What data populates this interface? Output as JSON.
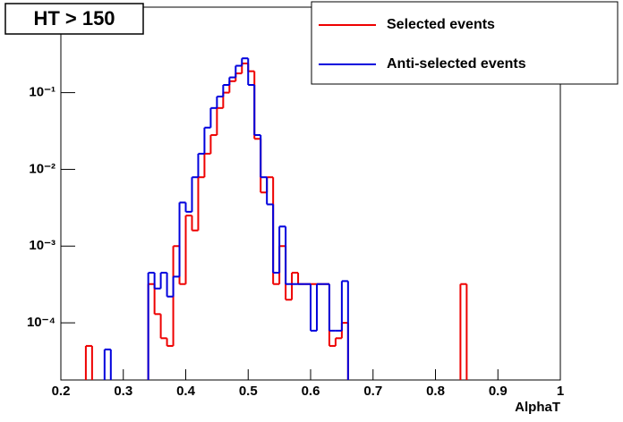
{
  "chart_data": {
    "type": "histogram",
    "title": "HT > 150",
    "x_label": "AlphaT",
    "log_y": true,
    "legend": "top-right",
    "bins": [
      0.2,
      0.21,
      0.22,
      0.23,
      0.24,
      0.25,
      0.26,
      0.27,
      0.28,
      0.29,
      0.3,
      0.31,
      0.32,
      0.33,
      0.34,
      0.35,
      0.36,
      0.37,
      0.38,
      0.39,
      0.4,
      0.41,
      0.42,
      0.43,
      0.44,
      0.45,
      0.46,
      0.47,
      0.48,
      0.49,
      0.5,
      0.51,
      0.52,
      0.53,
      0.54,
      0.55,
      0.56,
      0.57,
      0.58,
      0.59,
      0.6,
      0.61,
      0.62,
      0.63,
      0.64,
      0.65,
      0.66,
      0.67,
      0.68,
      0.69,
      0.7,
      0.71,
      0.72,
      0.73,
      0.74,
      0.75,
      0.76,
      0.77,
      0.78,
      0.79,
      0.8,
      0.81,
      0.82,
      0.83,
      0.84,
      0.85,
      0.86,
      0.87,
      0.88,
      0.89,
      0.9,
      0.91,
      0.92,
      0.93,
      0.94,
      0.95,
      0.96,
      0.97,
      0.98,
      0.99,
      1
    ],
    "series": [
      {
        "name": "Selected events",
        "color": "#ee0000",
        "values": [
          null,
          null,
          null,
          null,
          5e-05,
          null,
          null,
          null,
          null,
          null,
          null,
          null,
          null,
          null,
          0.00032,
          0.00013,
          6.3e-05,
          5e-05,
          0.001,
          0.00032,
          0.0025,
          0.0016,
          0.0079,
          0.016,
          0.028,
          0.063,
          0.1,
          0.141,
          0.178,
          0.24,
          0.19,
          0.025,
          0.005,
          0.0079,
          0.00032,
          0.001,
          0.0002,
          0.00045,
          0.00032,
          0.00032,
          0.00032,
          0.00032,
          0.00032,
          5e-05,
          6.3e-05,
          0.0001,
          null,
          null,
          null,
          null,
          null,
          null,
          null,
          null,
          null,
          null,
          null,
          null,
          null,
          null,
          null,
          null,
          null,
          null,
          0.00032,
          null,
          null,
          null,
          null,
          null,
          null,
          null,
          null,
          null,
          null,
          null,
          null,
          null,
          null,
          null
        ]
      },
      {
        "name": "Anti-selected events",
        "color": "#0000dd",
        "values": [
          null,
          null,
          null,
          null,
          null,
          null,
          null,
          4.5e-05,
          null,
          null,
          null,
          null,
          null,
          null,
          0.00045,
          0.00028,
          0.00045,
          0.00022,
          0.0004,
          0.0037,
          0.0028,
          0.0079,
          0.016,
          0.035,
          0.063,
          0.089,
          0.126,
          0.158,
          0.224,
          0.28,
          0.126,
          0.028,
          0.0079,
          0.0035,
          0.00045,
          0.0018,
          0.00032,
          0.00032,
          0.00032,
          0.00032,
          7.9e-05,
          0.00032,
          0.00032,
          7.9e-05,
          7.9e-05,
          0.00035,
          null,
          null,
          null,
          null,
          null,
          null,
          null,
          null,
          null,
          null,
          null,
          null,
          null,
          null,
          null,
          null,
          null,
          null,
          null,
          null,
          null,
          null,
          null,
          null,
          null,
          null,
          null,
          null,
          null,
          null,
          null,
          null,
          null,
          null
        ]
      }
    ],
    "xlim": [
      0.2,
      1
    ],
    "xticks": [
      0.2,
      0.3,
      0.4,
      0.5,
      0.6,
      0.7,
      0.8,
      0.9,
      1
    ],
    "ylim": [
      1.8e-05,
      1.3
    ],
    "yticks": [
      {
        "value": 0.0001,
        "label": "10⁻⁴"
      },
      {
        "value": 0.001,
        "label": "10⁻³"
      },
      {
        "value": 0.01,
        "label": "10⁻²"
      },
      {
        "value": 0.1,
        "label": "10⁻¹"
      }
    ]
  }
}
